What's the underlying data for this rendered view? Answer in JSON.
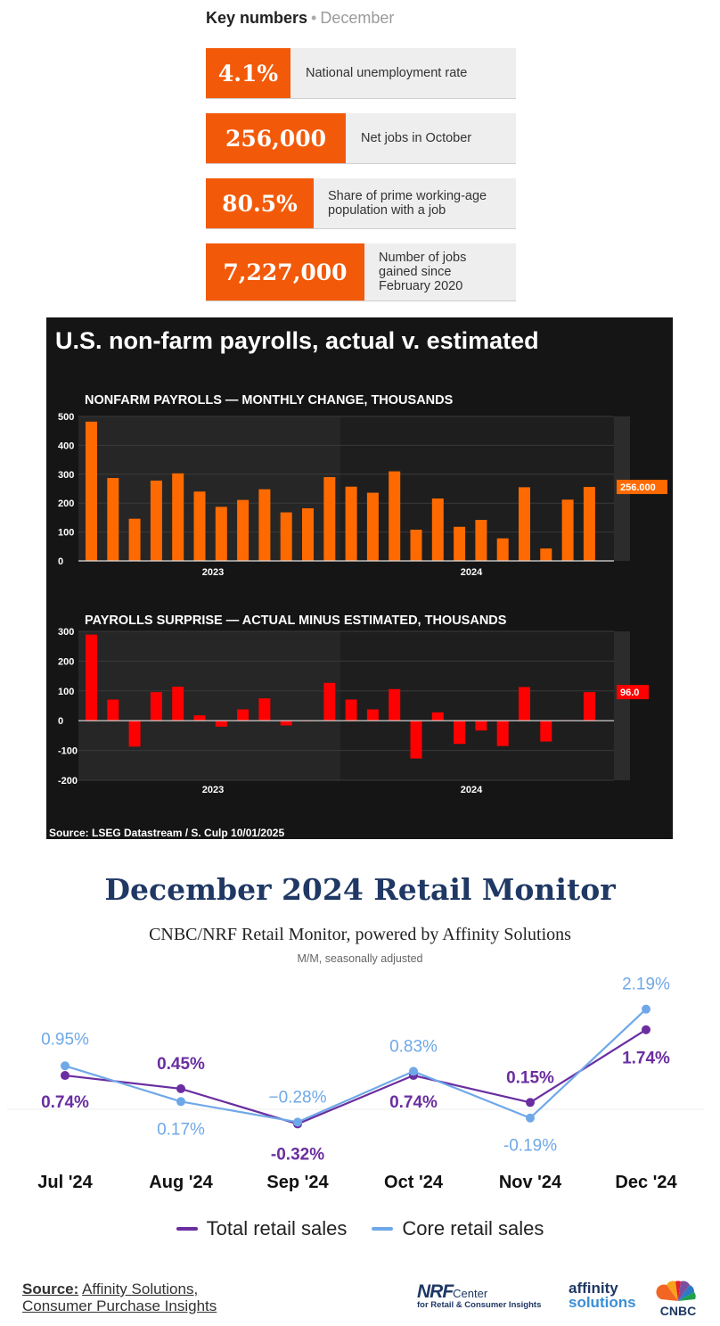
{
  "key_numbers": {
    "title": "Key numbers",
    "separator": "•",
    "month": "December",
    "items": [
      {
        "value": "4.1%",
        "label": "National unemployment rate"
      },
      {
        "value": "256,000",
        "label": "Net jobs in October"
      },
      {
        "value": "80.5%",
        "label": "Share of prime working-age population with a job"
      },
      {
        "value": "7,227,000",
        "label": "Number of jobs gained since February 2020"
      }
    ],
    "accent_color": "#f25a0a"
  },
  "chart_data": [
    {
      "type": "bar",
      "title": "U.S. non-farm payrolls, actual v. estimated",
      "subtitle": "NONFARM PAYROLLS — MONTHLY CHANGE, THOUSANDS",
      "values": [
        482,
        287,
        146,
        278,
        303,
        240,
        187,
        211,
        248,
        168,
        182,
        290,
        257,
        236,
        310,
        108,
        216,
        118,
        142,
        78,
        255,
        43,
        212,
        256
      ],
      "ylim": [
        0,
        500
      ],
      "y_ticks": [
        "500",
        "400",
        "300",
        "200",
        "100",
        "0"
      ],
      "x_tick_labels": [
        "2023",
        "2024"
      ],
      "last_value_label": "256.000",
      "color": "#ff6a00",
      "grid": true
    },
    {
      "type": "bar",
      "subtitle": "PAYROLLS SURPRISE — ACTUAL MINUS ESTIMATED, THOUSANDS",
      "values": [
        289,
        71,
        -87,
        96,
        114,
        18,
        -20,
        38,
        75,
        -16,
        0,
        127,
        71,
        38,
        106,
        -127,
        28,
        -78,
        -33,
        -85,
        113,
        -70,
        2,
        96
      ],
      "ylim": [
        -200,
        300
      ],
      "y_ticks": [
        "300",
        "200",
        "100",
        "0",
        "-100",
        "-200"
      ],
      "x_tick_labels": [
        "2023",
        "2024"
      ],
      "last_value_label": "96.0",
      "color": "#ff0000",
      "grid": true
    },
    {
      "type": "line",
      "title": "December 2024 Retail Monitor",
      "subtitle": "CNBC/NRF Retail Monitor, powered by Affinity Solutions",
      "note": "M/M, seasonally adjusted",
      "categories": [
        "Jul '24",
        "Aug '24",
        "Sep '24",
        "Oct '24",
        "Nov '24",
        "Dec '24"
      ],
      "series": [
        {
          "name": "Total retail sales",
          "values": [
            0.74,
            0.45,
            -0.32,
            0.74,
            0.15,
            1.74
          ],
          "labels": [
            "0.74%",
            "0.45%",
            "-0.32%",
            "0.74%",
            "0.15%",
            "1.74%"
          ],
          "color": "#6a2ea0"
        },
        {
          "name": "Core retail sales",
          "values": [
            0.95,
            0.17,
            -0.28,
            0.83,
            -0.19,
            2.19
          ],
          "labels": [
            "0.95%",
            "0.17%",
            "−0.28%",
            "0.83%",
            "-0.19%",
            "2.19%"
          ],
          "color": "#6fa8e8"
        }
      ]
    }
  ],
  "payrolls_source": "Source: LSEG Datastream / S. Culp 10/01/2025",
  "source": {
    "label": "Source:",
    "line1": "Affinity Solutions,",
    "line2": "Consumer Purchase Insights"
  },
  "logos": {
    "nrf_big": "NRF",
    "nrf_center": "Center",
    "nrf_tag": "for Retail & Consumer Insights",
    "affinity_1": "affinity",
    "affinity_2": "solutions",
    "cnbc": "CNBC"
  }
}
